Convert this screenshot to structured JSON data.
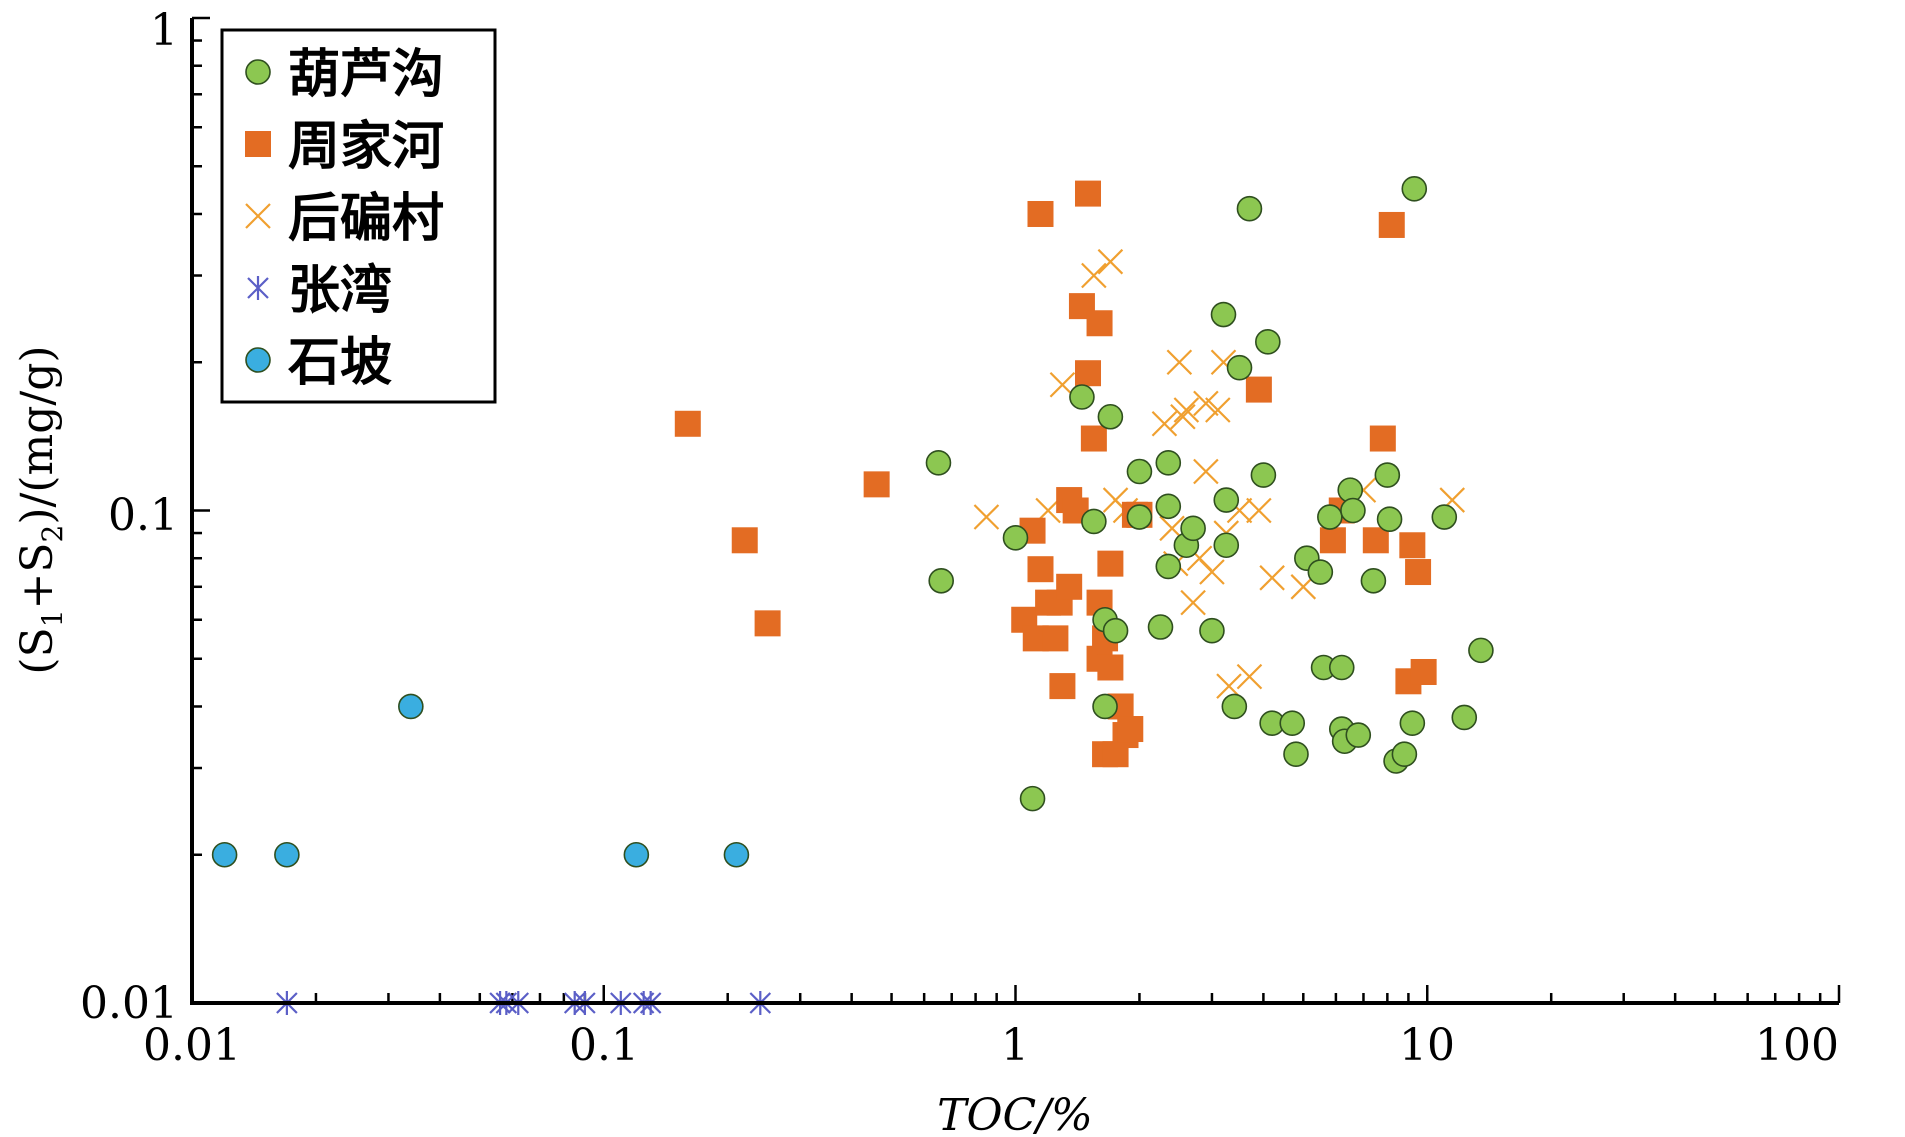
{
  "chart_data": {
    "type": "scatter",
    "xscale": "log",
    "yscale": "log",
    "xlim": [
      0.01,
      100
    ],
    "ylim": [
      0.01,
      1
    ],
    "xlabel": "TOC/%",
    "ylabel": "(S1+S2)/(mg/g)",
    "ylabel_parts": {
      "open": "(S",
      "sub1": "1",
      "plus": "+S",
      "sub2": "2",
      "close": ")/(mg/g)"
    },
    "x_ticks": [
      "0.01",
      "0.1",
      "1",
      "10",
      "100"
    ],
    "y_ticks": [
      "0.01",
      "0.1",
      "1"
    ],
    "grid": false,
    "legend_position": "top-left",
    "series": [
      {
        "name": "葫芦沟",
        "marker": "circle",
        "color": "#8cc751",
        "points": [
          [
            0.65,
            0.125
          ],
          [
            0.66,
            0.072
          ],
          [
            1.0,
            0.088
          ],
          [
            1.1,
            0.026
          ],
          [
            1.45,
            0.17
          ],
          [
            1.55,
            0.095
          ],
          [
            1.65,
            0.06
          ],
          [
            1.7,
            0.155
          ],
          [
            1.75,
            0.057
          ],
          [
            1.65,
            0.04
          ],
          [
            2.0,
            0.12
          ],
          [
            2.0,
            0.097
          ],
          [
            2.25,
            0.058
          ],
          [
            2.35,
            0.125
          ],
          [
            2.35,
            0.102
          ],
          [
            2.35,
            0.077
          ],
          [
            2.6,
            0.085
          ],
          [
            2.7,
            0.092
          ],
          [
            3.0,
            0.057
          ],
          [
            3.2,
            0.25
          ],
          [
            3.25,
            0.105
          ],
          [
            3.25,
            0.085
          ],
          [
            3.4,
            0.04
          ],
          [
            3.5,
            0.195
          ],
          [
            3.7,
            0.41
          ],
          [
            4.0,
            0.118
          ],
          [
            4.1,
            0.22
          ],
          [
            4.2,
            0.037
          ],
          [
            4.7,
            0.037
          ],
          [
            4.8,
            0.032
          ],
          [
            5.1,
            0.08
          ],
          [
            5.5,
            0.075
          ],
          [
            5.6,
            0.048
          ],
          [
            5.8,
            0.097
          ],
          [
            6.2,
            0.048
          ],
          [
            6.2,
            0.036
          ],
          [
            6.3,
            0.034
          ],
          [
            6.5,
            0.11
          ],
          [
            6.6,
            0.1
          ],
          [
            6.8,
            0.035
          ],
          [
            7.4,
            0.072
          ],
          [
            8.0,
            0.118
          ],
          [
            8.1,
            0.096
          ],
          [
            8.4,
            0.031
          ],
          [
            8.8,
            0.032
          ],
          [
            9.2,
            0.037
          ],
          [
            9.3,
            0.45
          ],
          [
            11.0,
            0.097
          ],
          [
            12.3,
            0.038
          ],
          [
            13.5,
            0.052
          ]
        ]
      },
      {
        "name": "周家河",
        "marker": "square",
        "color": "#e36c23",
        "points": [
          [
            0.16,
            0.15
          ],
          [
            0.46,
            0.113
          ],
          [
            0.22,
            0.087
          ],
          [
            0.25,
            0.059
          ],
          [
            1.1,
            0.091
          ],
          [
            1.15,
            0.4
          ],
          [
            1.15,
            0.076
          ],
          [
            1.05,
            0.06
          ],
          [
            1.12,
            0.055
          ],
          [
            1.2,
            0.065
          ],
          [
            1.25,
            0.055
          ],
          [
            1.28,
            0.065
          ],
          [
            1.3,
            0.044
          ],
          [
            1.35,
            0.07
          ],
          [
            1.35,
            0.105
          ],
          [
            1.4,
            0.1
          ],
          [
            1.45,
            0.26
          ],
          [
            1.5,
            0.19
          ],
          [
            1.5,
            0.44
          ],
          [
            1.55,
            0.14
          ],
          [
            1.6,
            0.24
          ],
          [
            1.6,
            0.065
          ],
          [
            1.6,
            0.05
          ],
          [
            1.65,
            0.055
          ],
          [
            1.7,
            0.078
          ],
          [
            1.7,
            0.048
          ],
          [
            1.65,
            0.032
          ],
          [
            1.75,
            0.032
          ],
          [
            1.8,
            0.04
          ],
          [
            1.85,
            0.035
          ],
          [
            1.9,
            0.036
          ],
          [
            1.95,
            0.098
          ],
          [
            2.0,
            0.098
          ],
          [
            3.9,
            0.176
          ],
          [
            5.9,
            0.087
          ],
          [
            6.2,
            0.1
          ],
          [
            7.5,
            0.087
          ],
          [
            7.8,
            0.14
          ],
          [
            8.2,
            0.38
          ],
          [
            9.0,
            0.045
          ],
          [
            9.2,
            0.085
          ],
          [
            9.5,
            0.075
          ],
          [
            9.8,
            0.047
          ]
        ]
      },
      {
        "name": "后碥村",
        "marker": "x",
        "color": "#f0a030",
        "points": [
          [
            0.85,
            0.097
          ],
          [
            1.2,
            0.1
          ],
          [
            1.3,
            0.18
          ],
          [
            1.55,
            0.3
          ],
          [
            1.7,
            0.32
          ],
          [
            1.75,
            0.105
          ],
          [
            1.85,
            0.1
          ],
          [
            2.3,
            0.15
          ],
          [
            2.4,
            0.092
          ],
          [
            2.45,
            0.078
          ],
          [
            2.5,
            0.2
          ],
          [
            2.55,
            0.155
          ],
          [
            2.6,
            0.16
          ],
          [
            2.7,
            0.065
          ],
          [
            2.8,
            0.08
          ],
          [
            2.9,
            0.165
          ],
          [
            2.9,
            0.12
          ],
          [
            3.0,
            0.075
          ],
          [
            3.1,
            0.16
          ],
          [
            3.2,
            0.2
          ],
          [
            3.25,
            0.09
          ],
          [
            3.3,
            0.044
          ],
          [
            3.5,
            0.1
          ],
          [
            3.7,
            0.046
          ],
          [
            3.9,
            0.1
          ],
          [
            4.2,
            0.073
          ],
          [
            5.0,
            0.07
          ],
          [
            7.0,
            0.11
          ],
          [
            11.5,
            0.105
          ]
        ]
      },
      {
        "name": "张湾",
        "marker": "asterisk",
        "color": "#5b5fc7",
        "points": [
          [
            0.017,
            0.01
          ],
          [
            0.056,
            0.01
          ],
          [
            0.058,
            0.01
          ],
          [
            0.062,
            0.01
          ],
          [
            0.085,
            0.01
          ],
          [
            0.09,
            0.01
          ],
          [
            0.11,
            0.01
          ],
          [
            0.125,
            0.01
          ],
          [
            0.13,
            0.01
          ],
          [
            0.24,
            0.01
          ]
        ]
      },
      {
        "name": "石坡",
        "marker": "circle",
        "color": "#3aaee0",
        "points": [
          [
            0.012,
            0.02
          ],
          [
            0.017,
            0.02
          ],
          [
            0.034,
            0.04
          ],
          [
            0.12,
            0.02
          ],
          [
            0.21,
            0.02
          ]
        ]
      }
    ]
  }
}
